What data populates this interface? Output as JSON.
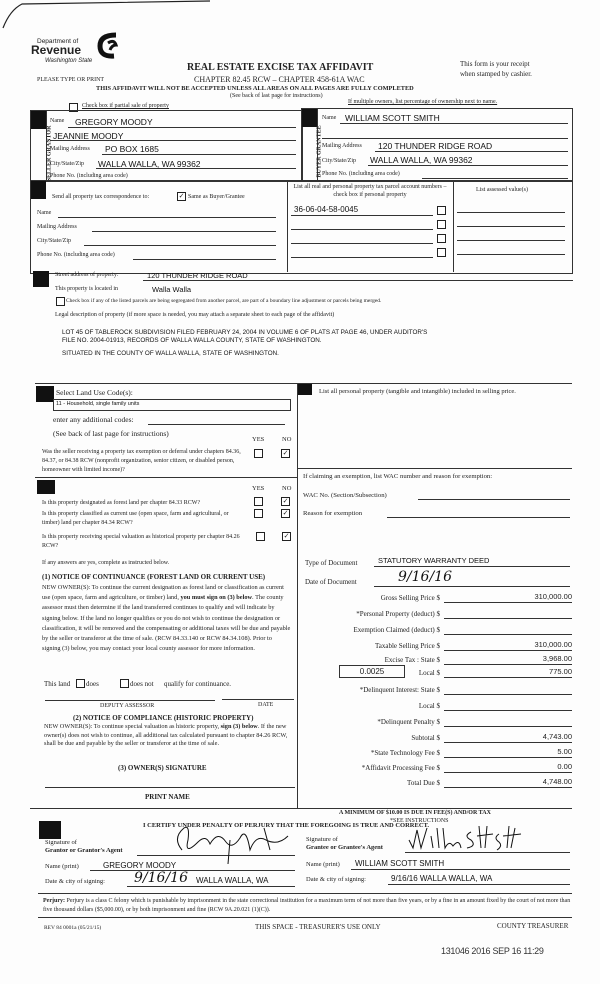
{
  "header": {
    "logo": {
      "line1": "Department of",
      "line2": "Revenue",
      "line3": "Washington State"
    },
    "title": "REAL ESTATE EXCISE TAX AFFIDAVIT",
    "chapter": "CHAPTER 82.45 RCW – CHAPTER 458-61A WAC",
    "receipt_note_1": "This form is your receipt",
    "receipt_note_2": "when stamped by cashier.",
    "type_or_print": "PLEASE TYPE OR PRINT",
    "warning": "THIS AFFIDAVIT WILL NOT BE ACCEPTED UNLESS ALL AREAS ON ALL PAGES ARE FULLY COMPLETED",
    "see_back": "(See back of last page for instructions)",
    "partial_sale_label": "Check box if partial sale of property",
    "partial_sale_checked": false,
    "multiple_owners_note": "If multiple owners, list percentage of ownership next to name."
  },
  "seller": {
    "side_label": "SELLER GRANTOR",
    "name_label": "Name",
    "name": "GREGORY MOODY",
    "name2": "JEANNIE MOODY",
    "mailing_label": "Mailing Address",
    "mailing": "PO BOX 1685",
    "city_label": "City/State/Zip",
    "city": "WALLA WALLA, WA  99362",
    "phone_label": "Phone No. (including area code)"
  },
  "buyer": {
    "side_label": "BUYER GRANTEE",
    "name_label": "Name",
    "name": "WILLIAM SCOTT SMITH",
    "mailing_label": "Mailing Address",
    "mailing": "120  THUNDER RIDGE ROAD",
    "city_label": "City/State/Zip",
    "city": "WALLA WALLA, WA  99362",
    "phone_label": "Phone No. (including area code)"
  },
  "correspondence": {
    "label": "Send all property tax correspondence to:",
    "same_as_buyer_label": "Same as Buyer/Grantee",
    "same_as_buyer_checked": true,
    "name_label": "Name",
    "mailing_label": "Mailing Address",
    "city_label": "City/State/Zip",
    "phone_label": "Phone No. (including area code)"
  },
  "parcels": {
    "header": "List all real and personal property tax parcel account numbers – check box if personal property",
    "assessed_header": "List assessed value(s)",
    "items": [
      "36-06-04-58-0045",
      "",
      "",
      ""
    ]
  },
  "property": {
    "street_label": "Street address of property:",
    "street": "120 THUNDER RIDGE ROAD",
    "located_label": "This property is located in",
    "located": "Walla Walla",
    "segregated_label": "Check box if any of the listed parcels are being segregated from another parcel, are part of a boundary line adjustment or parcels being merged.",
    "legal_label": "Legal description of property (if more space is needed, you may attach a separate sheet to each page of the affidavit)",
    "legal_line1": "LOT 45 OF TABLEROCK SUBDIVISION FILED FEBRUARY 24, 2004 IN VOLUME 6 OF PLATS AT PAGE 46, UNDER AUDITOR'S",
    "legal_line2": "FILE NO. 2004-01913, RECORDS OF WALLA WALLA COUNTY, STATE OF WASHINGTON.",
    "legal_line3": "SITUATED IN THE COUNTY OF WALLA WALLA, STATE OF WASHINGTON."
  },
  "land_use": {
    "label": "Select Land Use Code(s):",
    "selected": "11 - Household, single family units",
    "additional_label": "enter any additional codes:",
    "see_back": "(See back of last page for instructions)",
    "yes": "YES",
    "no": "NO",
    "q_exemption": "Was the seller receiving a property tax exemption or deferral under chapters 84.36, 84.37, or 84.38 RCW (nonprofit organization, senior citizen, or disabled person, homeowner with limited income)?",
    "q_forest": "Is this property designated as forest land per chapter 84.33 RCW?",
    "q_current_use": "Is this property classified as current use (open space, farm and agricultural, or timber) land per chapter 84.34 RCW?",
    "q_historic": "Is this property receiving special valuation as historical property per chapter 84.26 RCW?",
    "answers": {
      "exemption": "NO",
      "forest": "NO",
      "current_use": "NO",
      "historic": "NO"
    }
  },
  "notices": {
    "if_yes": "If any answers are yes, complete as instructed below.",
    "continuance_title": "(1) NOTICE OF CONTINUANCE  (FOREST LAND OR CURRENT USE)",
    "continuance_pre": "NEW OWNER(S): To continue the current designation as forest land or classification as current use (open space, farm and agriculture, or timber) land, ",
    "continuance_bold": "you must sign on (3) below",
    "continuance_post": ". The county assessor must then determine if the land transferred continues to qualify and will indicate by signing below. If the land no longer qualifies or you do not wish to continue the designation or classification, it will be removed and the compensating or additional taxes will be due and payable by the seller or transferor at the time of sale. (RCW 84.33.140 or RCW 84.34.108). Prior to signing (3) below, you may contact your local county assessor for more information.",
    "this_land": "This land",
    "does": "does",
    "does_not": "does not",
    "qualify": "qualify for continuance.",
    "deputy_assessor": "DEPUTY ASSESSOR",
    "date": "DATE",
    "compliance_title": "(2) NOTICE OF COMPLIANCE (HISTORIC PROPERTY)",
    "compliance_pre": "NEW OWNER(S): To continue special valuation as historic property, ",
    "compliance_bold": "sign (3) below",
    "compliance_post": ". If the new owner(s) does not wish to continue, all additional tax calculated pursuant to chapter 84.26 RCW, shall be due and payable by the seller or transferor at the time of sale.",
    "owner_signature": "(3)  OWNER(S) SIGNATURE",
    "print_name": "PRINT NAME"
  },
  "personal_property": {
    "label": "List all  personal property (tangible and intangible) included in selling price."
  },
  "exemption": {
    "label": "If claiming an exemption, list WAC number and reason for exemption:",
    "wac_label": "WAC No. (Section/Subsection)",
    "reason_label": "Reason for exemption"
  },
  "document": {
    "type_label": "Type of Document",
    "type": "STATUTORY WARRANTY DEED",
    "date_label": "Date of Document",
    "date": "9/16/16"
  },
  "tax": {
    "local_rate": "0.0025",
    "rows": [
      {
        "label": "Gross Selling Price  $",
        "value": "310,000.00"
      },
      {
        "label": "*Personal Property (deduct)  $",
        "value": ""
      },
      {
        "label": "Exemption Claimed (deduct)  $",
        "value": ""
      },
      {
        "label": "Taxable Selling Price  $",
        "value": "310,000.00"
      },
      {
        "label": "Excise Tax : State  $",
        "value": "3,968.00"
      },
      {
        "label": "Local  $",
        "value": "775.00"
      },
      {
        "label": "*Delinquent Interest: State  $",
        "value": ""
      },
      {
        "label": "Local  $",
        "value": ""
      },
      {
        "label": "*Delinquent Penalty  $",
        "value": ""
      },
      {
        "label": "Subtotal  $",
        "value": "4,743.00"
      },
      {
        "label": "*State Technology Fee  $",
        "value": "5.00"
      },
      {
        "label": "*Affidavit Processing Fee  $",
        "value": "0.00"
      },
      {
        "label": "Total Due  $",
        "value": "4,748.00"
      }
    ],
    "minimum_note": "A MINIMUM OF $10.00 IS DUE IN FEE(S) AND/OR TAX",
    "see_instructions": "*SEE INSTRUCTIONS"
  },
  "certification": {
    "statement": "I CERTIFY UNDER PENALTY OF PERJURY THAT THE FOREGOING IS TRUE AND CORRECT.",
    "grantor_sig_label1": "Signature of",
    "grantor_sig_label2": "Grantor or Grantor's Agent",
    "grantor_signature": "Gregory Moody",
    "grantor_name_label": "Name (print)",
    "grantor_name": "GREGORY MOODY",
    "grantor_date_label": "Date & city of signing:",
    "grantor_date": "9/16/16",
    "grantor_city": "WALLA WALLA, WA",
    "grantee_sig_label1": "Signature of",
    "grantee_sig_label2": "Grantee or Grantee's Agent",
    "grantee_signature": "William Scott Smith",
    "grantee_name_label": "Name (print)",
    "grantee_name": "WILLIAM SCOTT SMITH",
    "grantee_date_label": "Date & city of signing:",
    "grantee_date_city": "9/16/16  WALLA WALLA, WA"
  },
  "footer": {
    "perjury_bold": "Perjury:",
    "perjury": " Perjury is a class C felony which is punishable by imprisonment in the state correctional institution for a maximum term of not more than five years, or by a fine in an amount fixed by the court of not more than five thousand dollars ($5,000.00), or by both imprisonment and fine (RCW 9A.20.021 (1)(C)).",
    "form_id": "REV 84 0001a (05/21/15)",
    "treasurer_space": "THIS SPACE - TREASURER'S USE ONLY",
    "county_treasurer": "COUNTY TREASURER",
    "stamp": "131046 2016 SEP 16 11:29"
  }
}
